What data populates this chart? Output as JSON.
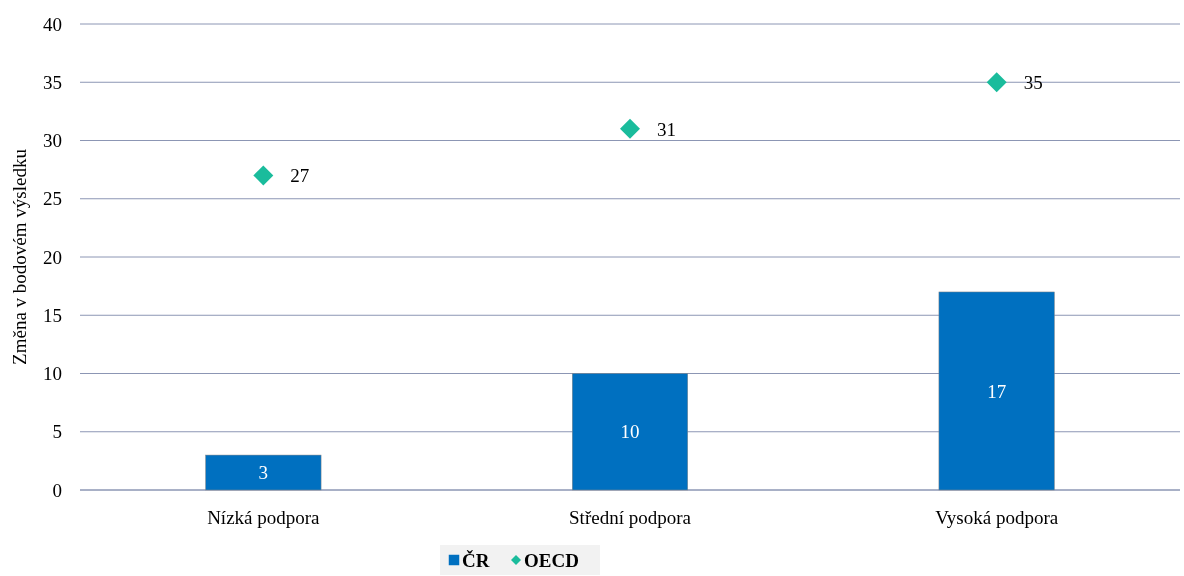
{
  "chart_data": {
    "type": "bar",
    "ylabel": "Změna v bodovém výsledku",
    "categories": [
      "Nízká podpora",
      "Střední podpora",
      "Vysoká podpora"
    ],
    "series": [
      {
        "name": "ČR",
        "color": "#0070c0",
        "values": [
          3,
          10,
          17
        ]
      },
      {
        "name": "OECD",
        "type": "scatter",
        "color": "#1abc9c",
        "values": [
          27,
          31,
          35
        ],
        "marker": "diamond"
      }
    ],
    "ylim": [
      0,
      40
    ],
    "yticks": [
      0,
      5,
      10,
      15,
      20,
      25,
      30,
      35,
      40
    ],
    "grid": "y",
    "legend": "bottom",
    "data_labels": true
  }
}
